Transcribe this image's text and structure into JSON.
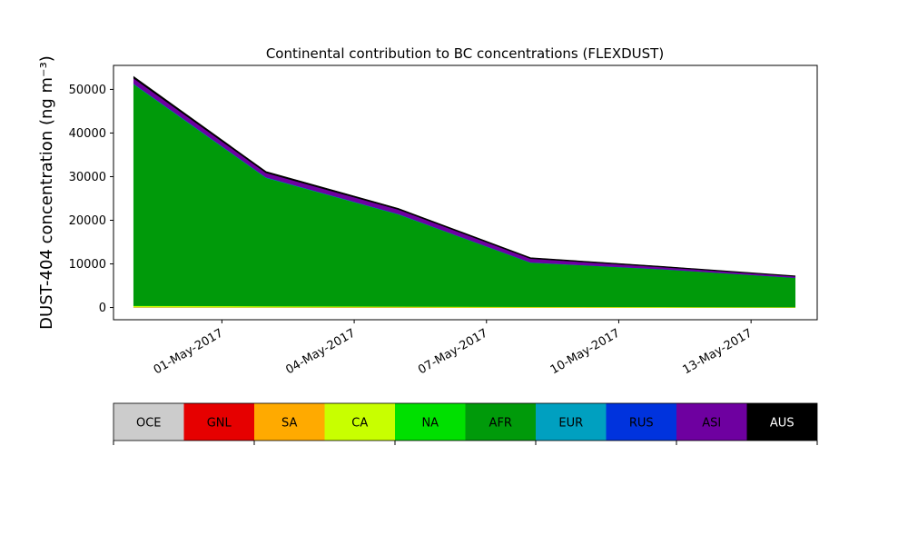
{
  "chart_data": {
    "type": "area",
    "stacked": true,
    "title": "Continental contribution to BC concentrations (FLEXDUST)",
    "xlabel": "",
    "ylabel": "DUST-404 concentration (ng m⁻³)",
    "x": [
      "2017-04-29",
      "2017-05-02",
      "2017-05-05",
      "2017-05-08",
      "2017-05-11",
      "2017-05-14"
    ],
    "xlim": [
      "2017-04-28T13:00",
      "2017-05-14T12:00"
    ],
    "ylim": [
      -2800,
      55500
    ],
    "yticks": [
      0,
      10000,
      20000,
      30000,
      40000,
      50000
    ],
    "xticks": [
      "2017-05-01",
      "2017-05-04",
      "2017-05-07",
      "2017-05-10",
      "2017-05-13"
    ],
    "xtick_labels": [
      "01-May-2017",
      "04-May-2017",
      "07-May-2017",
      "10-May-2017",
      "13-May-2017"
    ],
    "grid": false,
    "series": [
      {
        "name": "OCE",
        "color": "#cccccc",
        "values": [
          50,
          40,
          30,
          20,
          15,
          10
        ]
      },
      {
        "name": "GNL",
        "color": "#e60000",
        "values": [
          20,
          15,
          10,
          8,
          6,
          5
        ]
      },
      {
        "name": "SA",
        "color": "#ffaa00",
        "values": [
          30,
          25,
          20,
          15,
          10,
          8
        ]
      },
      {
        "name": "CA",
        "color": "#c8ff00",
        "values": [
          300,
          250,
          200,
          150,
          120,
          100
        ]
      },
      {
        "name": "NA",
        "color": "#00e000",
        "values": [
          50,
          40,
          30,
          20,
          15,
          10
        ]
      },
      {
        "name": "AFR",
        "color": "#009a0a",
        "values": [
          50750,
          29400,
          21100,
          10100,
          8600,
          6700
        ]
      },
      {
        "name": "EUR",
        "color": "#00a0c0",
        "values": [
          100,
          80,
          60,
          40,
          30,
          20
        ]
      },
      {
        "name": "RUS",
        "color": "#0033dd",
        "values": [
          50,
          40,
          30,
          20,
          15,
          10
        ]
      },
      {
        "name": "ASI",
        "color": "#6e00a0",
        "values": [
          1200,
          1000,
          1000,
          850,
          460,
          300
        ]
      },
      {
        "name": "AUS",
        "color": "#000000",
        "values": [
          400,
          300,
          250,
          200,
          150,
          100
        ]
      }
    ]
  },
  "legend": {
    "items": [
      {
        "label": "OCE",
        "color": "#cccccc",
        "text_color": "#000000"
      },
      {
        "label": "GNL",
        "color": "#e60000",
        "text_color": "#000000"
      },
      {
        "label": "SA",
        "color": "#ffaa00",
        "text_color": "#000000"
      },
      {
        "label": "CA",
        "color": "#c8ff00",
        "text_color": "#000000"
      },
      {
        "label": "NA",
        "color": "#00e000",
        "text_color": "#000000"
      },
      {
        "label": "AFR",
        "color": "#009a0a",
        "text_color": "#000000"
      },
      {
        "label": "EUR",
        "color": "#00a0c0",
        "text_color": "#000000"
      },
      {
        "label": "RUS",
        "color": "#0033dd",
        "text_color": "#000000"
      },
      {
        "label": "ASI",
        "color": "#6e00a0",
        "text_color": "#000000"
      },
      {
        "label": "AUS",
        "color": "#000000",
        "text_color": "#ffffff"
      }
    ]
  }
}
